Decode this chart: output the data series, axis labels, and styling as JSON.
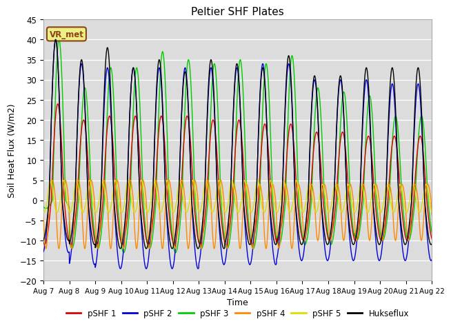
{
  "title": "Peltier SHF Plates",
  "ylabel": "Soil Heat Flux (W/m2)",
  "xlabel": "Time",
  "ylim": [
    -20,
    45
  ],
  "yticks": [
    -20,
    -15,
    -10,
    -5,
    0,
    5,
    10,
    15,
    20,
    25,
    30,
    35,
    40,
    45
  ],
  "bg_color": "#dcdcdc",
  "legend_entries": [
    "pSHF 1",
    "pSHF 2",
    "pSHF 3",
    "pSHF 4",
    "pSHF 5",
    "Hukseflux"
  ],
  "legend_colors": [
    "#dd0000",
    "#0000dd",
    "#00cc00",
    "#ff8800",
    "#dddd00",
    "#000000"
  ],
  "annotation_text": "VR_met",
  "annotation_bg": "#eeee88",
  "annotation_border": "#8B4513",
  "x_tick_labels": [
    "Aug 7",
    "Aug 8",
    "Aug 9",
    "Aug 10",
    "Aug 11",
    "Aug 12",
    "Aug 13",
    "Aug 14",
    "Aug 15",
    "Aug 16",
    "Aug 17",
    "Aug 18",
    "Aug 19",
    "Aug 20",
    "Aug 21",
    "Aug 22"
  ]
}
